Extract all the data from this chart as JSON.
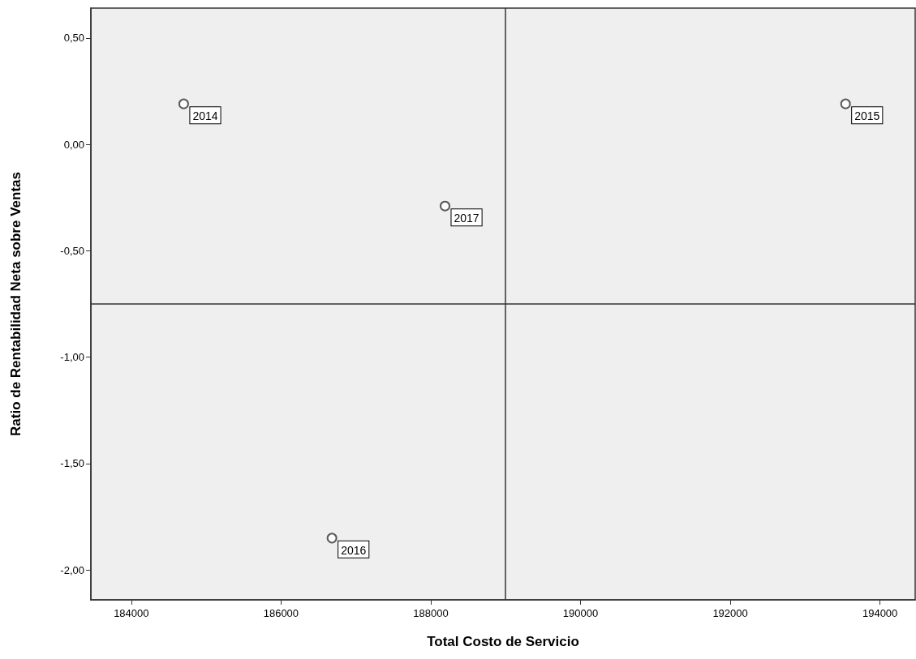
{
  "chart_data": {
    "type": "scatter",
    "xlabel": "Total Costo de Servicio",
    "ylabel": "Ratio de Rentabilidad Neta sobre Ventas",
    "x": [
      184700,
      193540,
      186680,
      188190
    ],
    "values": [
      0.19,
      0.19,
      -1.85,
      -0.29
    ],
    "annotations": [
      {
        "text": "2014",
        "x": 184700,
        "y": 0.19
      },
      {
        "text": "2015",
        "x": 193540,
        "y": 0.19
      },
      {
        "text": "2016",
        "x": 186680,
        "y": -1.85
      },
      {
        "text": "2017",
        "x": 188190,
        "y": -0.29
      }
    ],
    "color": "#333333",
    "marker": "circle",
    "xlim": [
      183460,
      194470
    ],
    "xticks": [
      184000,
      186000,
      188000,
      190000,
      192000,
      194000
    ],
    "ylim": [
      -2.14,
      0.64
    ],
    "yticks": [
      {
        "value": 0.5,
        "label": "0,50"
      },
      {
        "value": 0,
        "label": "0,00"
      },
      {
        "value": -0.5,
        "label": "-0,50"
      },
      {
        "value": -1,
        "label": "-1,00"
      },
      {
        "value": -1.5,
        "label": "-1,50"
      },
      {
        "value": -2,
        "label": "-2,00"
      }
    ],
    "ref_lines": [
      {
        "axis": "x",
        "value": 189000,
        "color": "#333333"
      },
      {
        "axis": "y",
        "value": -0.75,
        "color": "#333333"
      }
    ],
    "grid": false
  }
}
